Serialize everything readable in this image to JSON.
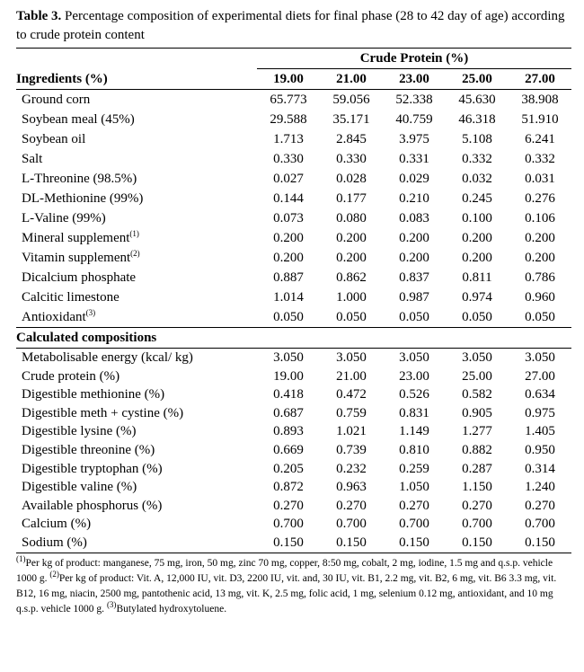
{
  "caption": {
    "label": "Table 3.",
    "text": "Percentage composition of experimental diets for final phase (28 to 42 day of age) according to crude protein content"
  },
  "header": {
    "group": "Crude Protein (%)",
    "first": "Ingredients (%)",
    "columns": [
      "19.00",
      "21.00",
      "23.00",
      "25.00",
      "27.00"
    ]
  },
  "ingredients": [
    {
      "label": "Ground corn",
      "values": [
        "65.773",
        "59.056",
        "52.338",
        "45.630",
        "38.908"
      ]
    },
    {
      "label": "Soybean meal (45%)",
      "values": [
        "29.588",
        "35.171",
        "40.759",
        "46.318",
        "51.910"
      ]
    },
    {
      "label": "Soybean oil",
      "values": [
        "1.713",
        "2.845",
        "3.975",
        "5.108",
        "6.241"
      ]
    },
    {
      "label": "Salt",
      "values": [
        "0.330",
        "0.330",
        "0.331",
        "0.332",
        "0.332"
      ]
    },
    {
      "label": "L-Threonine (98.5%)",
      "values": [
        "0.027",
        "0.028",
        "0.029",
        "0.032",
        "0.031"
      ]
    },
    {
      "label": "DL-Methionine (99%)",
      "values": [
        "0.144",
        "0.177",
        "0.210",
        "0.245",
        "0.276"
      ]
    },
    {
      "label": "L-Valine (99%)",
      "values": [
        "0.073",
        "0.080",
        "0.083",
        "0.100",
        "0.106"
      ]
    },
    {
      "label": "Mineral supplement",
      "sup": "(1)",
      "values": [
        "0.200",
        "0.200",
        "0.200",
        "0.200",
        "0.200"
      ]
    },
    {
      "label": "Vitamin supplement",
      "sup": "(2)",
      "values": [
        "0.200",
        "0.200",
        "0.200",
        "0.200",
        "0.200"
      ]
    },
    {
      "label": "Dicalcium phosphate",
      "values": [
        "0.887",
        "0.862",
        "0.837",
        "0.811",
        "0.786"
      ]
    },
    {
      "label": "Calcitic limestone",
      "values": [
        "1.014",
        "1.000",
        "0.987",
        "0.974",
        "0.960"
      ]
    },
    {
      "label": "Antioxidant",
      "sup": "(3)",
      "values": [
        "0.050",
        "0.050",
        "0.050",
        "0.050",
        "0.050"
      ]
    }
  ],
  "calculated": {
    "heading": "Calculated compositions",
    "rows": [
      {
        "label": "Metabolisable energy (kcal/ kg)",
        "values": [
          "3.050",
          "3.050",
          "3.050",
          "3.050",
          "3.050"
        ]
      },
      {
        "label": "Crude protein (%)",
        "values": [
          "19.00",
          "21.00",
          "23.00",
          "25.00",
          "27.00"
        ]
      },
      {
        "label": "Digestible methionine (%)",
        "values": [
          "0.418",
          "0.472",
          "0.526",
          "0.582",
          "0.634"
        ]
      },
      {
        "label": "Digestible meth + cystine (%)",
        "values": [
          "0.687",
          "0.759",
          "0.831",
          "0.905",
          "0.975"
        ]
      },
      {
        "label": "Digestible lysine (%)",
        "values": [
          "0.893",
          "1.021",
          "1.149",
          "1.277",
          "1.405"
        ]
      },
      {
        "label": "Digestible threonine (%)",
        "values": [
          "0.669",
          "0.739",
          "0.810",
          "0.882",
          "0.950"
        ]
      },
      {
        "label": "Digestible tryptophan (%)",
        "values": [
          "0.205",
          "0.232",
          "0.259",
          "0.287",
          "0.314"
        ]
      },
      {
        "label": "Digestible valine (%)",
        "values": [
          "0.872",
          "0.963",
          "1.050",
          "1.150",
          "1.240"
        ]
      },
      {
        "label": "Available phosphorus (%)",
        "values": [
          "0.270",
          "0.270",
          "0.270",
          "0.270",
          "0.270"
        ]
      },
      {
        "label": "Calcium (%)",
        "values": [
          "0.700",
          "0.700",
          "0.700",
          "0.700",
          "0.700"
        ]
      },
      {
        "label": "Sodium (%)",
        "values": [
          "0.150",
          "0.150",
          "0.150",
          "0.150",
          "0.150"
        ]
      }
    ]
  },
  "footnotes": [
    {
      "mark": "(1)",
      "text": "Per kg of product: manganese, 75 mg, iron, 50 mg, zinc 70 mg, copper, 8:50 mg, cobalt, 2 mg, iodine, 1.5 mg and q.s.p. vehicle 1000 g."
    },
    {
      "mark": "(2)",
      "text": "Per kg of product: Vit. A, 12,000 IU, vit. D3, 2200 IU, vit. and, 30 IU, vit. B1, 2.2 mg, vit. B2, 6 mg, vit. B6 3.3 mg, vit. B12, 16 mg, niacin, 2500 mg, pantothenic acid, 13 mg, vit. K, 2.5 mg, folic acid, 1 mg, selenium 0.12 mg, antioxidant, and 10 mg q.s.p. vehicle 1000 g."
    },
    {
      "mark": "(3)",
      "text": "Butylated hydroxytoluene."
    }
  ]
}
